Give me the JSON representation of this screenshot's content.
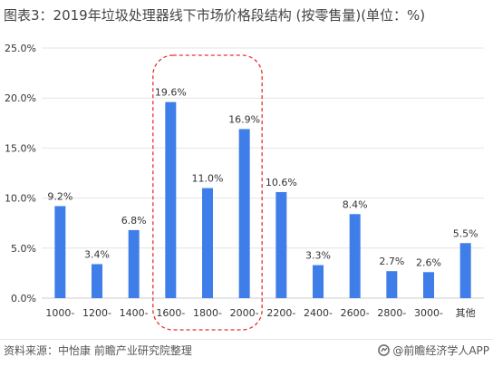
{
  "title": "图表3：2019年垃圾处理器线下市场价格段结构 (按零售量)(单位：%)",
  "source": "资料来源：中怡康 前瞻产业研究院整理",
  "brand": "@前瞻经济学人APP",
  "colors": {
    "bar": "#3f7ee8",
    "highlight_border": "#e8322f",
    "grid": "#e4e4e4",
    "axis_text": "#333333"
  },
  "chart_data": {
    "type": "bar",
    "title": "图表3：2019年垃圾处理器线下市场价格段结构 (按零售量)(单位：%)",
    "xlabel": "",
    "ylabel": "",
    "categories": [
      "1000-",
      "1200-",
      "1400-",
      "1600-",
      "1800-",
      "2000-",
      "2200-",
      "2400-",
      "2600-",
      "2800-",
      "3000-",
      "其他"
    ],
    "values": [
      9.2,
      3.4,
      6.8,
      19.6,
      11.0,
      16.9,
      10.6,
      3.3,
      8.4,
      2.7,
      2.6,
      5.5
    ],
    "value_labels": [
      "9.2%",
      "3.4%",
      "6.8%",
      "19.6%",
      "11.0%",
      "16.9%",
      "10.6%",
      "3.3%",
      "8.4%",
      "2.7%",
      "2.6%",
      "5.5%"
    ],
    "ylim": [
      0,
      25
    ],
    "yticks": [
      0,
      5,
      10,
      15,
      20,
      25
    ],
    "ytick_labels": [
      "0.0%",
      "5.0%",
      "10.0%",
      "15.0%",
      "20.0%",
      "25.0%"
    ],
    "grid": true,
    "legend": "none",
    "highlight_categories": [
      "1600-",
      "1800-",
      "2000-"
    ]
  }
}
